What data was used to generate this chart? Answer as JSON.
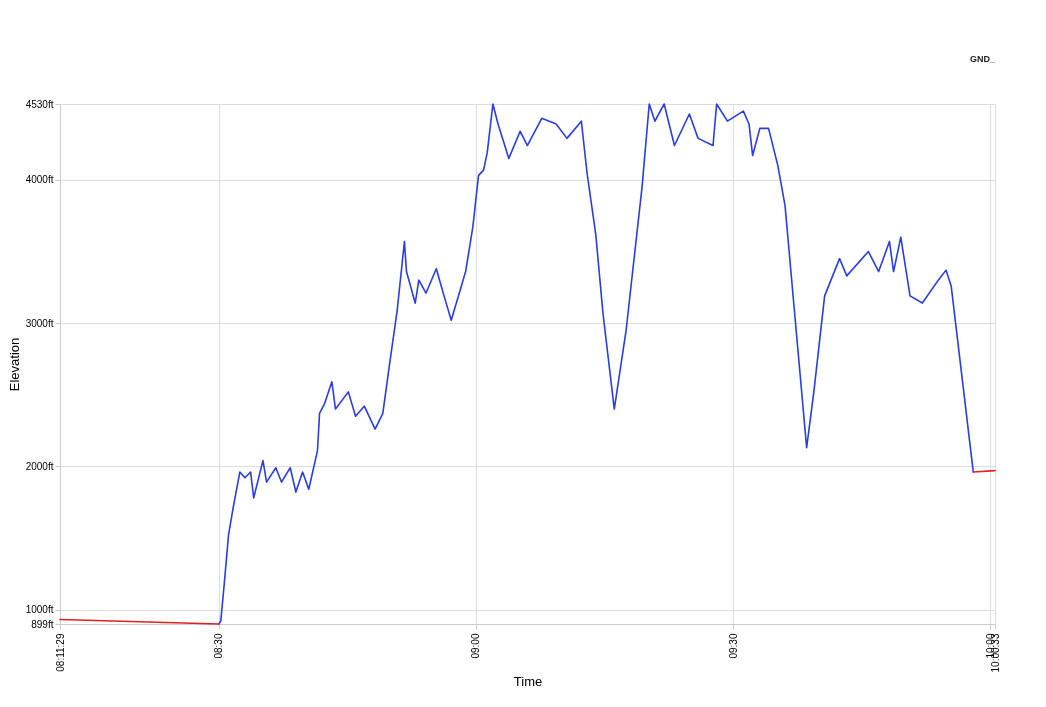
{
  "chart_data": {
    "type": "line",
    "xlabel": "Time",
    "ylabel": "Elevation",
    "annotations": [
      "GND_"
    ],
    "xlim": [
      8.1914,
      10.0092
    ],
    "ylim": [
      899,
      4530
    ],
    "xticks": [
      {
        "value": 8.1914,
        "label": "08:11:29"
      },
      {
        "value": 8.5,
        "label": "08:30"
      },
      {
        "value": 9,
        "label": "09:00"
      },
      {
        "value": 9.5,
        "label": "09:30"
      },
      {
        "value": 10,
        "label": "10:00"
      },
      {
        "value": 10.0092,
        "label": "10:00:33"
      }
    ],
    "yticks": [
      {
        "value": 899,
        "label": "899ft"
      },
      {
        "value": 1000,
        "label": "1000ft"
      },
      {
        "value": 2000,
        "label": "2000ft"
      },
      {
        "value": 3000,
        "label": "3000ft"
      },
      {
        "value": 4000,
        "label": "4000ft"
      },
      {
        "value": 4530,
        "label": "4530ft"
      }
    ],
    "grid": true,
    "line_style": "solid",
    "marker": "none",
    "series": [
      {
        "color": "#e02020",
        "x": [
          8.1914,
          8.5
        ],
        "values": [
          930,
          899
        ]
      },
      {
        "color": "#2a3de0",
        "x": [
          8.5,
          8.504,
          8.511,
          8.519,
          8.528,
          8.541,
          8.551,
          8.562,
          8.568,
          8.586,
          8.593,
          8.611,
          8.622,
          8.639,
          8.65,
          8.663,
          8.675,
          8.692,
          8.696,
          8.706,
          8.72,
          8.727,
          8.752,
          8.766,
          8.783,
          8.804,
          8.819,
          8.832,
          8.847,
          8.861,
          8.865,
          8.882,
          8.889,
          8.903,
          8.923,
          8.938,
          8.952,
          8.966,
          8.98,
          8.994,
          9.005,
          9.015,
          9.022,
          9.033,
          9.043,
          9.064,
          9.086,
          9.1,
          9.128,
          9.156,
          9.177,
          9.205,
          9.216,
          9.233,
          9.247,
          9.269,
          9.292,
          9.323,
          9.337,
          9.348,
          9.366,
          9.386,
          9.415,
          9.432,
          9.461,
          9.468,
          9.489,
          9.52,
          9.531,
          9.538,
          9.552,
          9.569,
          9.587,
          9.601,
          9.643,
          9.657,
          9.678,
          9.707,
          9.721,
          9.763,
          9.783,
          9.804,
          9.812,
          9.826,
          9.844,
          9.868,
          9.897,
          9.914,
          9.924,
          9.967
        ],
        "values": [
          899,
          920,
          1190,
          1520,
          1710,
          1960,
          1920,
          1960,
          1780,
          2040,
          1890,
          1990,
          1890,
          1990,
          1820,
          1960,
          1840,
          2110,
          2370,
          2440,
          2590,
          2400,
          2520,
          2350,
          2420,
          2260,
          2370,
          2710,
          3090,
          3570,
          3360,
          3140,
          3300,
          3210,
          3380,
          3190,
          3020,
          3190,
          3360,
          3670,
          4030,
          4070,
          4190,
          4530,
          4390,
          4150,
          4340,
          4240,
          4430,
          4390,
          4290,
          4410,
          4050,
          3620,
          3070,
          2400,
          2950,
          3950,
          4530,
          4410,
          4530,
          4240,
          4460,
          4290,
          4240,
          4530,
          4410,
          4480,
          4390,
          4170,
          4360,
          4360,
          4100,
          3820,
          2130,
          2520,
          3190,
          3450,
          3330,
          3500,
          3360,
          3570,
          3360,
          3600,
          3190,
          3140,
          3290,
          3370,
          3260,
          1960
        ]
      },
      {
        "color": "#e02020",
        "x": [
          9.967,
          10.0092
        ],
        "values": [
          1960,
          1970
        ]
      }
    ]
  }
}
